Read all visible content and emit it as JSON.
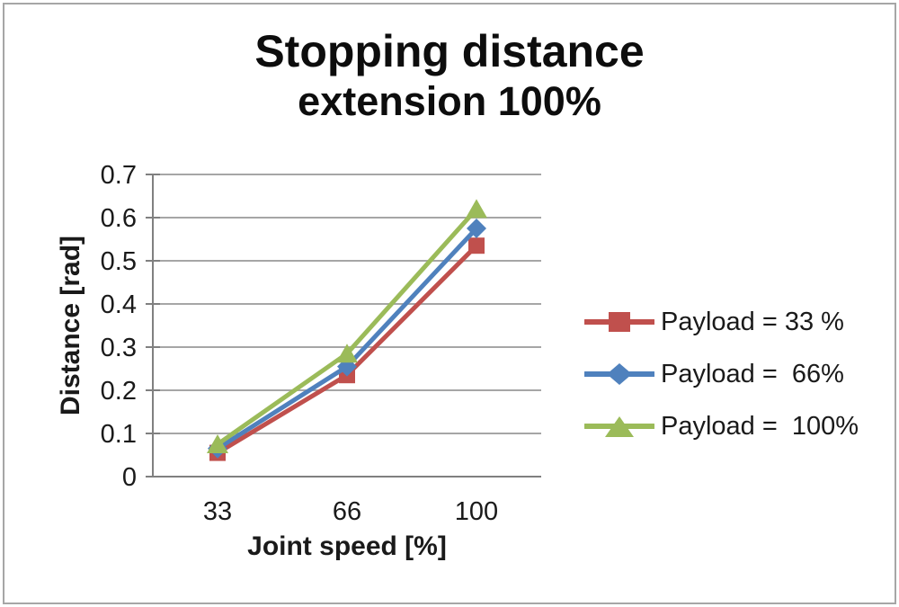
{
  "title": {
    "line1": "Stopping distance",
    "line2": "extension 100%"
  },
  "chart_data": {
    "type": "line",
    "title": "Stopping distance extension 100%",
    "categories": [
      "33",
      "66",
      "100"
    ],
    "xlabel": "Joint speed [%]",
    "ylabel": "Distance [rad]",
    "ylim": [
      0,
      0.7
    ],
    "ytick_step": 0.1,
    "yticks": [
      "0.7",
      "0.6",
      "0.5",
      "0.4",
      "0.3",
      "0.2",
      "0.1",
      "0"
    ],
    "grid": true,
    "legend_position": "right",
    "series": [
      {
        "name": "Payload = 33 %",
        "marker": "square",
        "color": "#C0504D",
        "values": [
          0.055,
          0.235,
          0.535
        ]
      },
      {
        "name": "Payload =  66%",
        "marker": "diamond",
        "color": "#4F81BD",
        "values": [
          0.065,
          0.255,
          0.575
        ]
      },
      {
        "name": "Payload =  100%",
        "marker": "triangle",
        "color": "#9BBB59",
        "values": [
          0.075,
          0.285,
          0.62
        ]
      }
    ],
    "colors": {
      "gridline": "#a6a6a6",
      "axis": "#808080",
      "text": "#1a1a1a"
    }
  }
}
